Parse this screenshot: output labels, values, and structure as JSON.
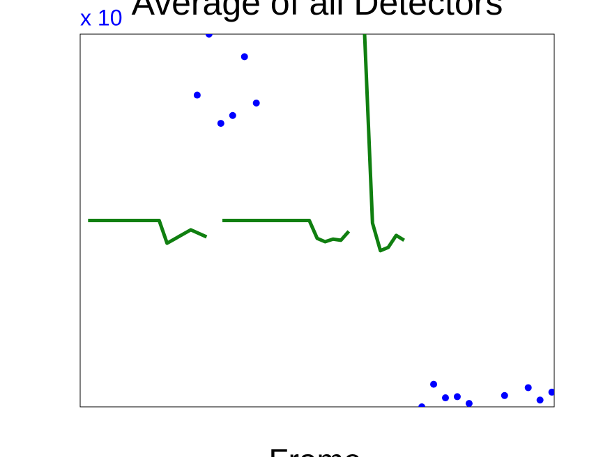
{
  "chart_data": {
    "type": "combo",
    "title": "Average of all Detectors",
    "xlabel": "Frame",
    "y_multiplier": "x 10",
    "grid": true,
    "xlim": [
      0,
      60
    ],
    "xticks": [
      0,
      20,
      40,
      60
    ],
    "x2lim": [
      1.1,
      41.2
    ],
    "x2ticks": [
      10,
      20,
      30,
      40
    ],
    "ylim": [
      0.64,
      3.94
    ],
    "yticks": [
      1,
      2,
      3
    ],
    "y2lim": [
      -50,
      50
    ],
    "y2ticks": [
      -50,
      -40,
      -30,
      -20,
      -10,
      0,
      10,
      20,
      30,
      40,
      50
    ],
    "y_color": "#0000ff",
    "y2_color": "#008000",
    "series": [
      {
        "type": "scatter",
        "color": "#0000ff",
        "xaxis": "x2",
        "x": [
          11,
          12,
          13,
          14,
          15,
          16,
          30,
          31,
          32,
          33,
          34,
          37,
          39,
          40,
          41
        ],
        "values": [
          3.4,
          3.94,
          3.15,
          3.22,
          3.74,
          3.33,
          0.64,
          0.84,
          0.72,
          0.73,
          0.67,
          0.74,
          0.81,
          0.7,
          0.77
        ]
      },
      {
        "type": "line",
        "color": "#107f10",
        "axis": "y2",
        "x": [
          1,
          10,
          11,
          14,
          16,
          17,
          18,
          29,
          30,
          31,
          32,
          33,
          34,
          35,
          36,
          37,
          38,
          39,
          40,
          41
        ],
        "values": [
          0,
          0,
          -6.1,
          -2.5,
          -4.4,
          null,
          0,
          0,
          -4.8,
          -5.7,
          -5,
          -5.3,
          -2.9,
          null,
          50,
          -0.7,
          -8.1,
          -7.2,
          -4,
          -5.3
        ]
      }
    ]
  }
}
